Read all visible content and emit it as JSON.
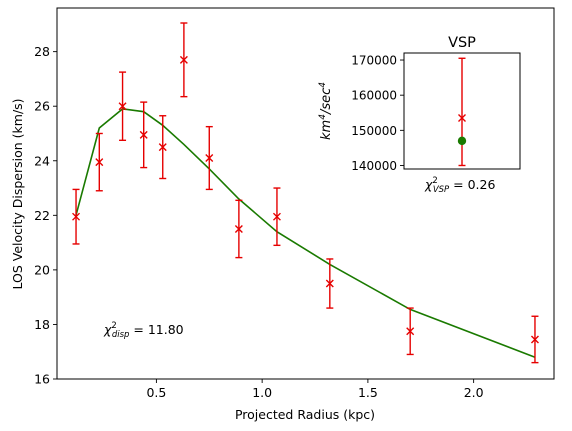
{
  "chart_data": [
    {
      "type": "line",
      "xlabel": "Projected Radius (kpc)",
      "ylabel": "LOS Velocity Dispersion (km/s)",
      "xlim": [
        0.03,
        2.38
      ],
      "ylim": [
        16,
        29.6
      ],
      "x_ticks": [
        0.5,
        1.0,
        1.5,
        2.0
      ],
      "x_tick_labels": [
        "0.5",
        "1.0",
        "1.5",
        "2.0"
      ],
      "y_ticks": [
        16,
        18,
        20,
        22,
        24,
        26,
        28
      ],
      "y_tick_labels": [
        "16",
        "18",
        "20",
        "22",
        "24",
        "26",
        "28"
      ],
      "grid": false,
      "annotation": "χ²disp = 11.80",
      "annotation_parts": {
        "symbol": "χ",
        "sup": "2",
        "sub": "disp",
        "rest": " = 11.80"
      },
      "series": [
        {
          "type": "errorbar",
          "marker": "x",
          "color": "#e60000",
          "x": [
            0.12,
            0.23,
            0.34,
            0.44,
            0.53,
            0.63,
            0.75,
            0.89,
            1.07,
            1.32,
            1.7,
            2.29
          ],
          "y": [
            21.95,
            23.95,
            26.0,
            24.95,
            24.5,
            27.7,
            24.1,
            21.5,
            21.95,
            19.5,
            17.75,
            17.45
          ],
          "yerr": [
            1.0,
            1.05,
            1.25,
            1.2,
            1.15,
            1.35,
            1.15,
            1.05,
            1.05,
            0.9,
            0.85,
            0.85
          ]
        },
        {
          "type": "line",
          "color": "#1a7a00",
          "x": [
            0.12,
            0.23,
            0.34,
            0.44,
            0.53,
            0.63,
            0.75,
            0.89,
            1.07,
            1.32,
            1.7,
            2.29
          ],
          "y": [
            22.0,
            25.2,
            25.9,
            25.8,
            25.3,
            24.6,
            23.7,
            22.6,
            21.4,
            20.2,
            18.55,
            16.8
          ]
        }
      ]
    },
    {
      "type": "scatter",
      "title": "VSP",
      "xlabel": "",
      "ylabel": "km⁴/sec⁴",
      "ylabel_parts": {
        "a": "km",
        "a_sup": "4",
        "b": "/sec",
        "b_sup": "4"
      },
      "xlim": [
        0,
        1
      ],
      "ylim": [
        139000,
        172000
      ],
      "y_ticks": [
        140000,
        150000,
        160000,
        170000
      ],
      "y_tick_labels": [
        "140000",
        "150000",
        "160000",
        "170000"
      ],
      "annotation": "χ²VSP = 0.26",
      "annotation_parts": {
        "symbol": "χ",
        "sup": "2",
        "sub": "VSP",
        "rest": " = 0.26"
      },
      "series": [
        {
          "type": "errorbar",
          "marker": "x",
          "color": "#e60000",
          "x": [
            0.5
          ],
          "y": [
            153500
          ],
          "yerr": [
            [
              13500
            ],
            [
              17000
            ]
          ]
        },
        {
          "type": "point",
          "marker": "o",
          "color": "#1a7a00",
          "x": [
            0.5
          ],
          "y": [
            147000
          ]
        }
      ]
    }
  ]
}
